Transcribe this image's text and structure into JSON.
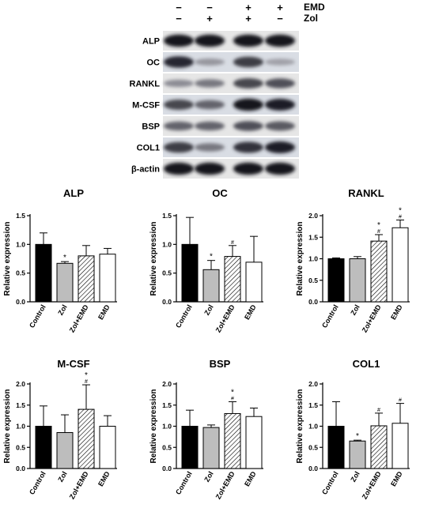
{
  "blot": {
    "treatments": [
      {
        "name": "EMD",
        "signs": [
          "−",
          "−",
          "+",
          "+"
        ]
      },
      {
        "name": "Zol",
        "signs": [
          "−",
          "+",
          "+",
          "−"
        ]
      }
    ],
    "rows": [
      {
        "label": "ALP",
        "intensity": [
          0.95,
          0.95,
          0.95,
          0.95
        ]
      },
      {
        "label": "OC",
        "intensity": [
          0.85,
          0.3,
          0.75,
          0.25
        ]
      },
      {
        "label": "RANKL",
        "intensity": [
          0.35,
          0.45,
          0.7,
          0.65
        ]
      },
      {
        "label": "M-CSF",
        "intensity": [
          0.7,
          0.55,
          0.95,
          0.9
        ]
      },
      {
        "label": "BSP",
        "intensity": [
          0.55,
          0.55,
          0.65,
          0.6
        ]
      },
      {
        "label": "COL1",
        "intensity": [
          0.75,
          0.45,
          0.8,
          0.9
        ]
      },
      {
        "label": "β-actin",
        "intensity": [
          0.95,
          0.95,
          0.95,
          0.95
        ]
      }
    ]
  },
  "chart_data": [
    {
      "type": "bar",
      "title": "ALP",
      "ylabel": "Relative expression",
      "categories": [
        "Control",
        "Zol",
        "Zol+EMD",
        "EMD"
      ],
      "values": [
        1.0,
        0.67,
        0.8,
        0.83
      ],
      "errors": [
        0.2,
        0.03,
        0.18,
        0.1
      ],
      "ylim": [
        0,
        1.5
      ],
      "yticks": [
        "0.0",
        "0.5",
        "1.0",
        "1.5"
      ],
      "significance": [
        "",
        "*",
        "",
        ""
      ]
    },
    {
      "type": "bar",
      "title": "OC",
      "ylabel": "Relative expression",
      "categories": [
        "Control",
        "Zol",
        "Zol+EMD",
        "EMD"
      ],
      "values": [
        1.0,
        0.56,
        0.79,
        0.69
      ],
      "errors": [
        0.47,
        0.16,
        0.19,
        0.45
      ],
      "ylim": [
        0,
        1.5
      ],
      "yticks": [
        "0.0",
        "0.5",
        "1.0",
        "1.5"
      ],
      "significance": [
        "",
        "*",
        "#",
        ""
      ]
    },
    {
      "type": "bar",
      "title": "RANKL",
      "ylabel": "Relative expression",
      "categories": [
        "Control",
        "Zol",
        "Zol+EMD",
        "EMD"
      ],
      "values": [
        1.0,
        1.0,
        1.41,
        1.72
      ],
      "errors": [
        0.02,
        0.05,
        0.15,
        0.18
      ],
      "ylim": [
        0,
        2.0
      ],
      "yticks": [
        "0.0",
        "0.5",
        "1.0",
        "1.5",
        "2.0"
      ],
      "significance": [
        "",
        "",
        "*\n#",
        "*\n#"
      ]
    },
    {
      "type": "bar",
      "title": "M-CSF",
      "ylabel": "Relative expression",
      "categories": [
        "Control",
        "Zol",
        "Zol+EMD",
        "EMD"
      ],
      "values": [
        1.0,
        0.85,
        1.4,
        1.0
      ],
      "errors": [
        0.48,
        0.42,
        0.58,
        0.25
      ],
      "ylim": [
        0,
        2.0
      ],
      "yticks": [
        "0.0",
        "0.5",
        "1.0",
        "1.5",
        "2.0"
      ],
      "significance": [
        "",
        "",
        "*\n#",
        ""
      ]
    },
    {
      "type": "bar",
      "title": "BSP",
      "ylabel": "Relative expression",
      "categories": [
        "Control",
        "Zol",
        "Zol+EMD",
        "EMD"
      ],
      "values": [
        1.0,
        0.97,
        1.3,
        1.23
      ],
      "errors": [
        0.38,
        0.06,
        0.28,
        0.2
      ],
      "ylim": [
        0,
        2.0
      ],
      "yticks": [
        "0.0",
        "0.5",
        "1.0",
        "1.5",
        "2.0"
      ],
      "significance": [
        "",
        "",
        "*\n#",
        ""
      ]
    },
    {
      "type": "bar",
      "title": "COL1",
      "ylabel": "Relative expression",
      "categories": [
        "Control",
        "Zol",
        "Zol+EMD",
        "EMD"
      ],
      "values": [
        1.0,
        0.65,
        1.01,
        1.07
      ],
      "errors": [
        0.58,
        0.02,
        0.3,
        0.47
      ],
      "ylim": [
        0,
        2.0
      ],
      "yticks": [
        "0.0",
        "0.5",
        "1.0",
        "1.5",
        "2.0"
      ],
      "significance": [
        "",
        "*",
        "#",
        "#"
      ]
    }
  ],
  "colors": {
    "control": "#000000",
    "zol": "#bdbdbd",
    "zol_emd": "#ffffff",
    "emd": "#ffffff"
  }
}
